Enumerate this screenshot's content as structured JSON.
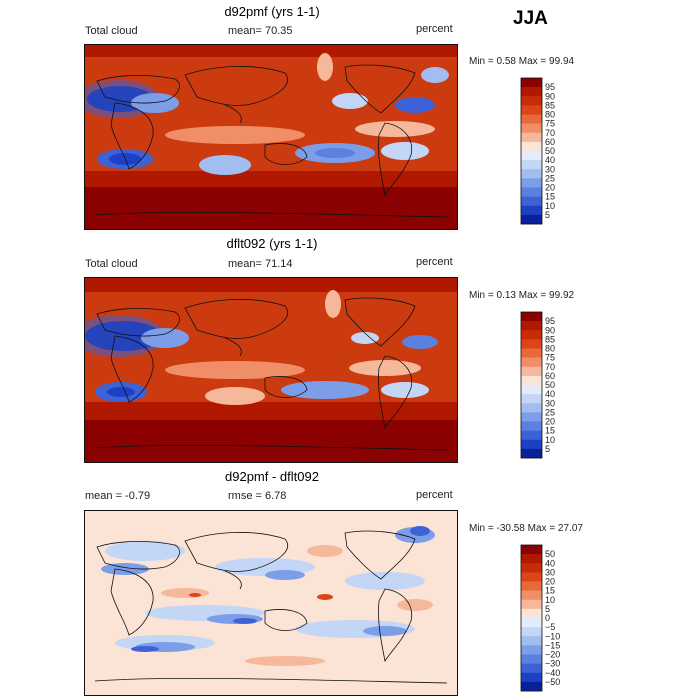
{
  "season": "JJA",
  "panels": [
    {
      "title": "d92pmf (yrs 1-1)",
      "left_label": "Total cloud",
      "mid_label": "mean=  70.35",
      "right_label": "percent",
      "min_max": "Min =   0.58 Max =  99.94",
      "colorbar_labels": [
        "95",
        "90",
        "85",
        "80",
        "75",
        "70",
        "60",
        "50",
        "40",
        "30",
        "25",
        "20",
        "15",
        "10",
        "5"
      ],
      "colorbar_colors": [
        "#8b0000",
        "#b01800",
        "#c92a08",
        "#dd4418",
        "#e8693a",
        "#f08f67",
        "#f6b89a",
        "#fbe3d6",
        "#e2ecfb",
        "#c4d6f6",
        "#a2bdf0",
        "#7c9ee8",
        "#5a80e0",
        "#3c62d6",
        "#1e40c4",
        "#0a1f9c"
      ]
    },
    {
      "title": "dflt092 (yrs 1-1)",
      "left_label": "Total cloud",
      "mid_label": "mean=  71.14",
      "right_label": "percent",
      "min_max": "Min =   0.13 Max =  99.92",
      "colorbar_labels": [
        "95",
        "90",
        "85",
        "80",
        "75",
        "70",
        "60",
        "50",
        "40",
        "30",
        "25",
        "20",
        "15",
        "10",
        "5"
      ],
      "colorbar_colors": [
        "#8b0000",
        "#b01800",
        "#c92a08",
        "#dd4418",
        "#e8693a",
        "#f08f67",
        "#f6b89a",
        "#fbe3d6",
        "#e2ecfb",
        "#c4d6f6",
        "#a2bdf0",
        "#7c9ee8",
        "#5a80e0",
        "#3c62d6",
        "#1e40c4",
        "#0a1f9c"
      ]
    },
    {
      "title": "d92pmf - dflt092",
      "left_label": "mean =   -0.79",
      "mid_label": "rmse =   6.78",
      "right_label": "percent",
      "min_max": "Min = -30.58 Max =  27.07",
      "colorbar_labels": [
        "50",
        "40",
        "30",
        "20",
        "15",
        "10",
        "5",
        "0",
        "−5",
        "−10",
        "−15",
        "−20",
        "−30",
        "−40",
        "−50"
      ],
      "colorbar_colors": [
        "#8b0000",
        "#b01800",
        "#c92a08",
        "#dd4418",
        "#e8693a",
        "#f08f67",
        "#f6b89a",
        "#fbe3d6",
        "#e2ecfb",
        "#c4d6f6",
        "#a2bdf0",
        "#7c9ee8",
        "#5a80e0",
        "#3c62d6",
        "#1e40c4",
        "#0a1f9c"
      ]
    }
  ]
}
